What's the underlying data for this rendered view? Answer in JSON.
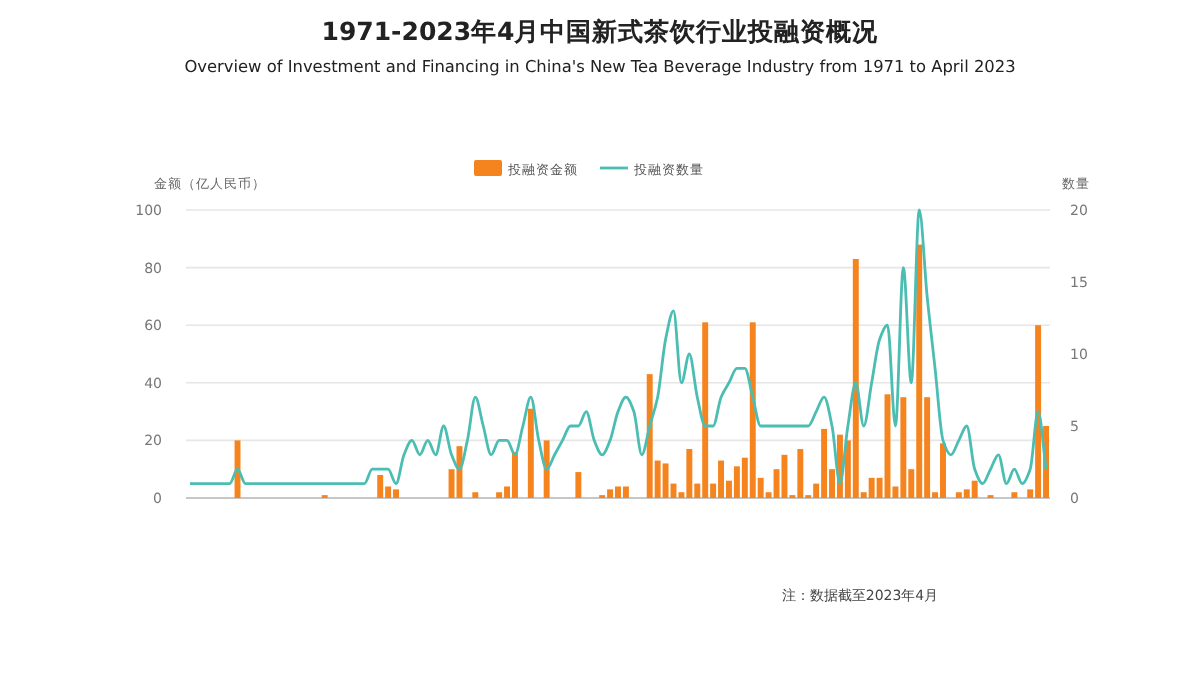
{
  "chart_data": {
    "type": "bar",
    "title": "1971-2023年4月中国新式茶饮行业投融资概况",
    "subtitle": "Overview of Investment and Financing in China's New Tea Beverage Industry from 1971 to April 2023",
    "ylabel": "金额（亿人民币）",
    "y2label": "数量",
    "annotations": [
      "注：数据截至2023年4月"
    ],
    "categories": [
      null,
      null,
      null,
      null,
      null,
      null,
      null,
      null,
      null,
      null,
      null,
      null,
      null,
      null,
      null,
      null,
      null,
      null,
      null,
      null,
      null,
      null,
      null,
      null,
      null,
      null,
      null,
      null,
      null,
      null,
      null,
      null,
      null,
      null,
      null,
      null,
      null,
      null,
      null,
      null,
      null,
      null,
      null,
      null,
      null,
      null,
      null,
      null,
      null,
      null,
      null,
      null,
      null,
      null,
      null,
      null,
      null,
      null,
      null,
      null,
      null,
      null,
      null,
      null,
      null,
      null,
      null,
      null,
      null,
      null,
      null,
      null,
      null,
      null,
      null,
      null,
      null,
      null,
      null,
      null,
      null,
      null,
      null,
      null,
      null,
      null,
      null,
      null,
      null,
      null,
      null,
      null,
      null,
      null,
      null,
      null,
      null,
      null,
      null,
      null,
      null,
      null,
      null,
      null,
      null,
      null,
      null,
      null,
      null
    ],
    "series": [
      {
        "name": "投融资金额",
        "color": "#f5841f",
        "values": [
          0,
          0,
          0,
          0,
          0,
          0,
          20,
          0,
          0,
          0,
          0,
          0,
          0,
          0,
          0,
          0,
          0,
          1,
          0,
          0,
          0,
          0,
          0,
          0,
          8,
          4,
          3,
          0,
          0,
          0,
          0,
          0,
          0,
          10,
          18,
          0,
          2,
          0,
          0,
          2,
          4,
          16,
          0,
          31,
          0,
          20,
          0,
          0,
          0,
          9,
          0,
          0,
          1,
          3,
          4,
          4,
          0,
          0,
          43,
          13,
          12,
          5,
          2,
          17,
          5,
          61,
          5,
          13,
          6,
          11,
          14,
          61,
          7,
          2,
          10,
          15,
          1,
          17,
          1,
          5,
          24,
          10,
          22,
          20,
          83,
          2,
          7,
          7,
          36,
          4,
          35,
          10,
          88,
          35,
          2,
          19,
          0,
          2,
          3,
          6,
          0,
          1,
          0,
          0,
          2,
          0,
          3,
          60,
          25
        ]
      },
      {
        "name": "投融资数量",
        "type": "line",
        "axis": "y2",
        "color": "#4bbdb3",
        "values": [
          1,
          1,
          1,
          1,
          1,
          1,
          2,
          1,
          1,
          1,
          1,
          1,
          1,
          1,
          1,
          1,
          1,
          1,
          1,
          1,
          1,
          1,
          1,
          2,
          2,
          2,
          1,
          3,
          4,
          3,
          4,
          3,
          5,
          3,
          2,
          4,
          7,
          5,
          3,
          4,
          4,
          3,
          5,
          7,
          4,
          2,
          3,
          4,
          5,
          5,
          6,
          4,
          3,
          4,
          6,
          7,
          6,
          3,
          5,
          7,
          11,
          13,
          8,
          10,
          7,
          5,
          5,
          7,
          8,
          9,
          9,
          7,
          5,
          5,
          5,
          5,
          5,
          5,
          5,
          6,
          7,
          5,
          1,
          5,
          8,
          5,
          8,
          11,
          12,
          5,
          16,
          8,
          20,
          14,
          9,
          4,
          3,
          4,
          5,
          2,
          1,
          2,
          3,
          1,
          2,
          1,
          2,
          6,
          2
        ]
      }
    ],
    "ylim": [
      0,
      100
    ],
    "yticks": [
      0,
      20,
      40,
      60,
      80,
      100
    ],
    "y2lim": [
      0,
      20
    ],
    "y2ticks": [
      0,
      5,
      10,
      15,
      20
    ],
    "grid": "y",
    "legend": "top"
  }
}
